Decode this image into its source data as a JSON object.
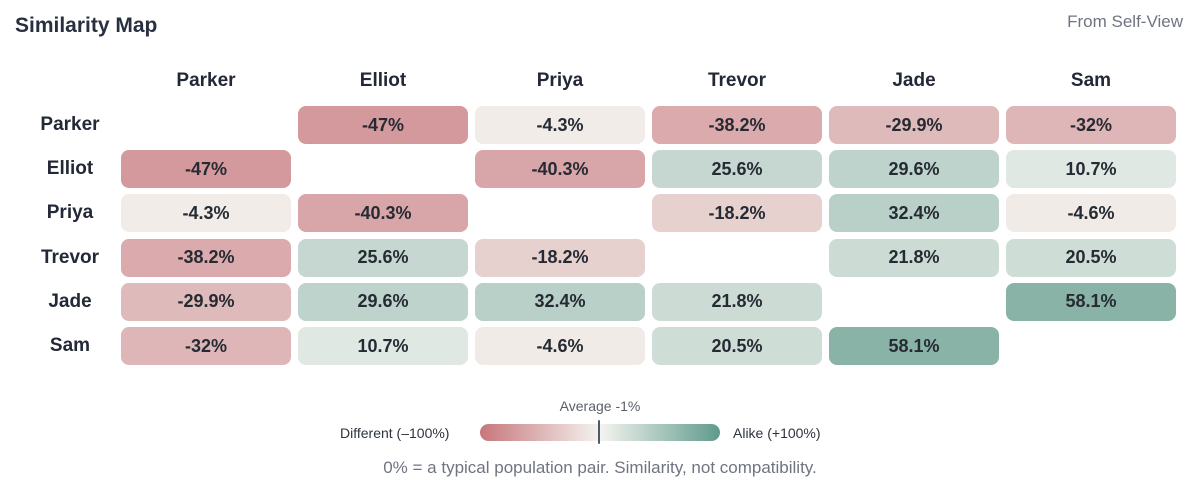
{
  "header": {
    "title": "Similarity Map",
    "view_label": "From Self-View"
  },
  "chart_data": {
    "type": "heatmap",
    "title": "Similarity Map",
    "people": [
      "Parker",
      "Elliot",
      "Priya",
      "Trevor",
      "Jade",
      "Sam"
    ],
    "matrix": [
      [
        null,
        -47,
        -4.3,
        -38.2,
        -29.9,
        -32
      ],
      [
        -47,
        null,
        -40.3,
        25.6,
        29.6,
        10.7
      ],
      [
        -4.3,
        -40.3,
        null,
        -18.2,
        32.4,
        -4.6
      ],
      [
        -38.2,
        25.6,
        -18.2,
        null,
        21.8,
        20.5
      ],
      [
        -29.9,
        29.6,
        32.4,
        21.8,
        null,
        58.1
      ],
      [
        -32,
        10.7,
        -4.6,
        20.5,
        58.1,
        null
      ]
    ],
    "value_format": "percent",
    "scale": {
      "min": -100,
      "max": 100,
      "average": -1,
      "color_negative": "#c7767b",
      "color_neutral": "#f4f4f0",
      "color_positive": "#5f9a8b"
    }
  },
  "legend": {
    "average_label": "Average -1%",
    "left_label": "Different (–100%)",
    "right_label": "Alike (+100%)"
  },
  "footnote": "0% = a typical population pair. Similarity, not compatibility."
}
